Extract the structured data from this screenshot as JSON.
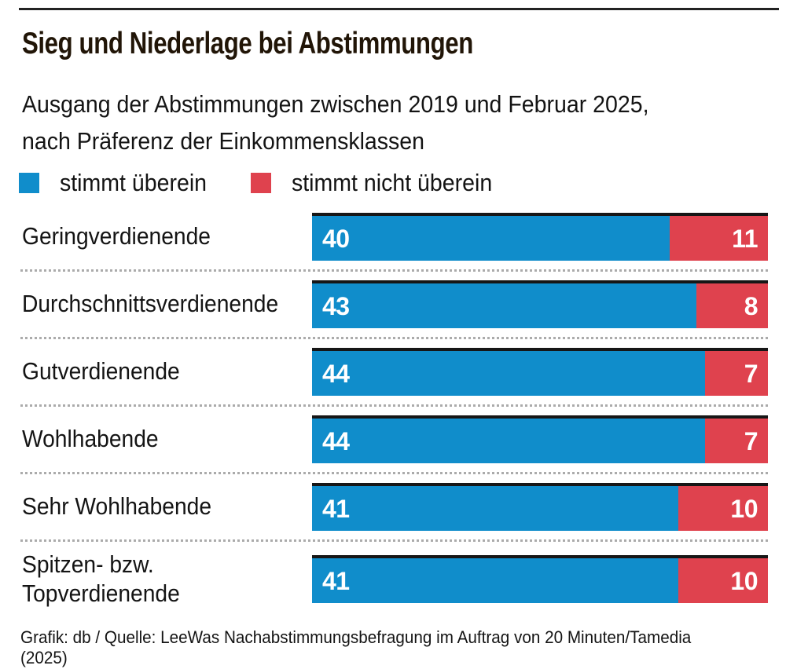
{
  "header": {
    "title": "Sieg und Niederlage bei Abstimmungen",
    "subtitle": "Ausgang der Abstimmungen zwischen 2019 und Februar 2025,\nnach Präferenz der Einkommensklassen"
  },
  "legend": [
    {
      "label": "stimmt überein",
      "color": "#108dcb"
    },
    {
      "label": "stimmt nicht überein",
      "color": "#df424e"
    }
  ],
  "chart_data": {
    "type": "bar",
    "orientation": "horizontal",
    "stacked": true,
    "grid": false,
    "legend_position": "top",
    "title": "Sieg und Niederlage bei Abstimmungen",
    "subtitle": "Ausgang der Abstimmungen zwischen 2019 und Februar 2025, nach Präferenz der Einkommensklassen",
    "categories": [
      "Geringverdienende",
      "Durchschnittsverdienende",
      "Gutverdienende",
      "Wohlhabende",
      "Sehr Wohlhabende",
      "Spitzen- bzw. Topverdienende"
    ],
    "series": [
      {
        "name": "stimmt überein",
        "color": "#108dcb",
        "values": [
          40,
          43,
          44,
          44,
          41,
          41
        ]
      },
      {
        "name": "stimmt nicht überein",
        "color": "#df424e",
        "values": [
          11,
          8,
          7,
          7,
          10,
          10
        ]
      }
    ],
    "rows": [
      {
        "label": "Geringverdienende",
        "agree": 40,
        "disagree": 11
      },
      {
        "label": "Durchschnittsverdienende",
        "agree": 43,
        "disagree": 8
      },
      {
        "label": "Gutverdienende",
        "agree": 44,
        "disagree": 7
      },
      {
        "label": "Wohlhabende",
        "agree": 44,
        "disagree": 7
      },
      {
        "label": "Sehr Wohlhabende",
        "agree": 41,
        "disagree": 10
      },
      {
        "label": "Spitzen- bzw.\nTopverdienende",
        "agree": 41,
        "disagree": 10
      }
    ],
    "colors": {
      "agree": "#108dcb",
      "disagree": "#df424e"
    }
  },
  "footer": {
    "credit": "Grafik: db / Quelle: LeeWas Nachabstimmungsbefragung im Auftrag von 20 Minuten/Tamedia (2025)"
  }
}
